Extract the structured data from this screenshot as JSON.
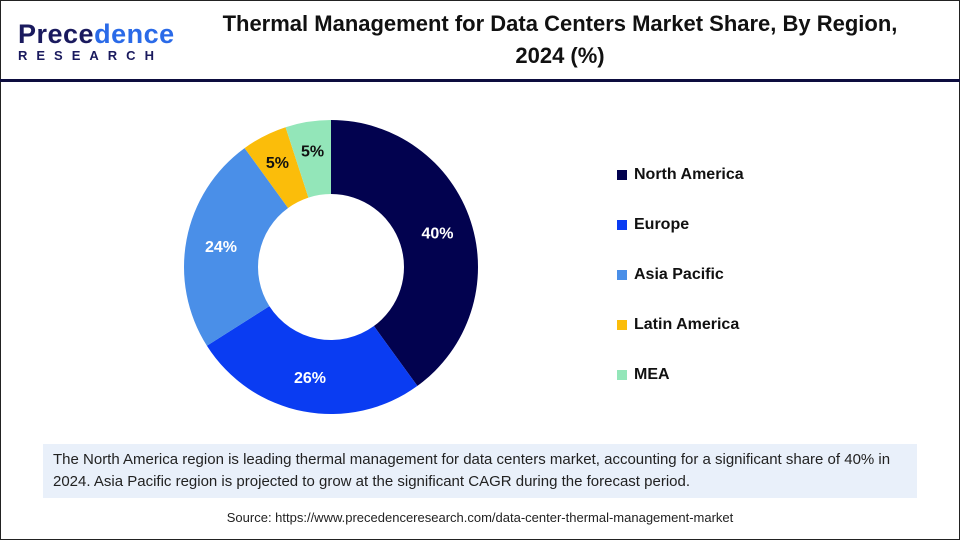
{
  "logo": {
    "text_main_a": "Prece",
    "text_main_b": "dence",
    "text_sub": "RESEARCH"
  },
  "title": "Thermal Management for Data Centers Market Share, By Region, 2024 (%)",
  "chart_data": {
    "type": "pie",
    "donut": true,
    "title": "Thermal Management for Data Centers Market Share, By Region, 2024 (%)",
    "categories": [
      "North America",
      "Europe",
      "Asia Pacific",
      "Latin America",
      "MEA"
    ],
    "values": [
      40,
      26,
      24,
      5,
      5
    ],
    "labels": [
      "40%",
      "26%",
      "24%",
      "5%",
      "5%"
    ],
    "colors": [
      "#02024f",
      "#0a3cf2",
      "#4a8fe8",
      "#fbbd0a",
      "#93e6b9"
    ],
    "label_colors": [
      "#ffffff",
      "#ffffff",
      "#ffffff",
      "#111111",
      "#111111"
    ],
    "legend_position": "right"
  },
  "note": "The North America region is leading thermal management for data centers market, accounting for a significant share of 40% in 2024. Asia Pacific region is projected to grow at the significant CAGR during the forecast period.",
  "source": "Source: https://www.precedenceresearch.com/data-center-thermal-management-market"
}
